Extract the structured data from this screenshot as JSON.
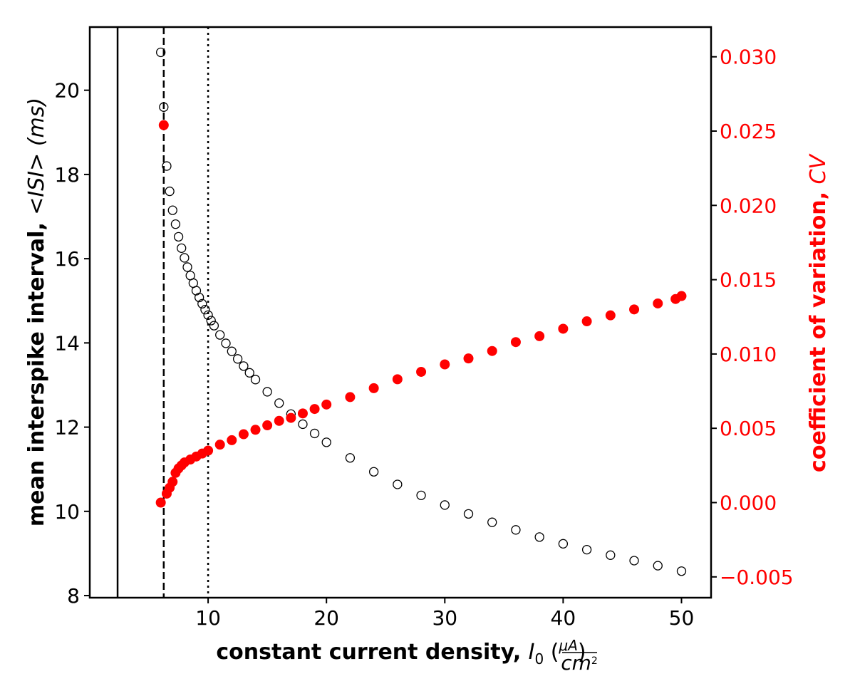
{
  "chart_data": {
    "type": "scatter",
    "title": "",
    "xlabel": {
      "text": "constant current density, ",
      "symbol": "I",
      "subscript": "0",
      "unit_open": " (",
      "unit_numerator": "μA",
      "unit_denominator_base": "cm",
      "unit_denominator_exp": "2",
      "unit_close": ")"
    },
    "ylabel": {
      "text": "mean interspike interval,  ",
      "symbol": "<ISI>",
      "unit": "  (ms)"
    },
    "y2label": {
      "text": "coefficient of variation, ",
      "symbol": "CV"
    },
    "xlim": [
      0,
      52.5
    ],
    "ylim": [
      7.95,
      21.5
    ],
    "y2lim": [
      -0.0064,
      0.032
    ],
    "xticks": [
      10,
      20,
      30,
      40,
      50
    ],
    "yticks": [
      8,
      10,
      12,
      14,
      16,
      18,
      20
    ],
    "y2ticks": [
      -0.005,
      0.0,
      0.005,
      0.01,
      0.015,
      0.02,
      0.025,
      0.03
    ],
    "y2tick_labels": [
      "−0.005",
      "0.000",
      "0.005",
      "0.010",
      "0.015",
      "0.020",
      "0.025",
      "0.030"
    ],
    "grid": false,
    "vlines": [
      {
        "x": 2.35,
        "style": "solid"
      },
      {
        "x": 6.25,
        "style": "dashed"
      },
      {
        "x": 10.0,
        "style": "dotted"
      }
    ],
    "series": [
      {
        "axis": "left",
        "marker": "open-circle",
        "color": "#000000",
        "x": [
          6.0,
          6.25,
          6.5,
          6.75,
          7.0,
          7.25,
          7.5,
          7.75,
          8.0,
          8.25,
          8.5,
          8.75,
          9.0,
          9.25,
          9.5,
          9.75,
          10.0,
          10.25,
          10.5,
          11.0,
          11.5,
          12.0,
          12.5,
          13.0,
          13.5,
          14.0,
          15.0,
          16.0,
          17.0,
          18.0,
          19.0,
          20.0,
          22.0,
          24.0,
          26.0,
          28.0,
          30.0,
          32.0,
          34.0,
          36.0,
          38.0,
          40.0,
          42.0,
          44.0,
          46.0,
          48.0,
          50.0
        ],
        "y": [
          20.9,
          19.6,
          18.2,
          17.6,
          17.15,
          16.82,
          16.52,
          16.25,
          16.02,
          15.8,
          15.6,
          15.42,
          15.24,
          15.08,
          14.93,
          14.79,
          14.66,
          14.53,
          14.41,
          14.19,
          13.99,
          13.8,
          13.62,
          13.45,
          13.29,
          13.13,
          12.84,
          12.57,
          12.31,
          12.07,
          11.85,
          11.64,
          11.27,
          10.94,
          10.64,
          10.38,
          10.15,
          9.94,
          9.74,
          9.56,
          9.39,
          9.23,
          9.09,
          8.96,
          8.83,
          8.71,
          8.58
        ]
      },
      {
        "axis": "right",
        "marker": "filled-circle",
        "color": "#ff0000",
        "x": [
          6.0,
          6.25,
          6.5,
          6.75,
          7.0,
          7.25,
          7.5,
          7.75,
          8.0,
          8.5,
          9.0,
          9.5,
          10.0,
          11.0,
          12.0,
          13.0,
          14.0,
          15.0,
          16.0,
          17.0,
          18.0,
          19.0,
          20.0,
          22.0,
          24.0,
          26.0,
          28.0,
          30.0,
          32.0,
          34.0,
          36.0,
          38.0,
          40.0,
          42.0,
          44.0,
          46.0,
          48.0,
          49.5,
          50.0
        ],
        "y": [
          0.0,
          0.0254,
          0.0006,
          0.001,
          0.0014,
          0.002,
          0.0023,
          0.0025,
          0.0027,
          0.0029,
          0.0031,
          0.0033,
          0.0035,
          0.0039,
          0.0042,
          0.0046,
          0.0049,
          0.0052,
          0.0055,
          0.0057,
          0.006,
          0.0063,
          0.0066,
          0.0071,
          0.0077,
          0.0083,
          0.0088,
          0.0093,
          0.0097,
          0.0102,
          0.0108,
          0.0112,
          0.0117,
          0.0122,
          0.0126,
          0.013,
          0.0134,
          0.0137,
          0.0139
        ]
      }
    ]
  }
}
